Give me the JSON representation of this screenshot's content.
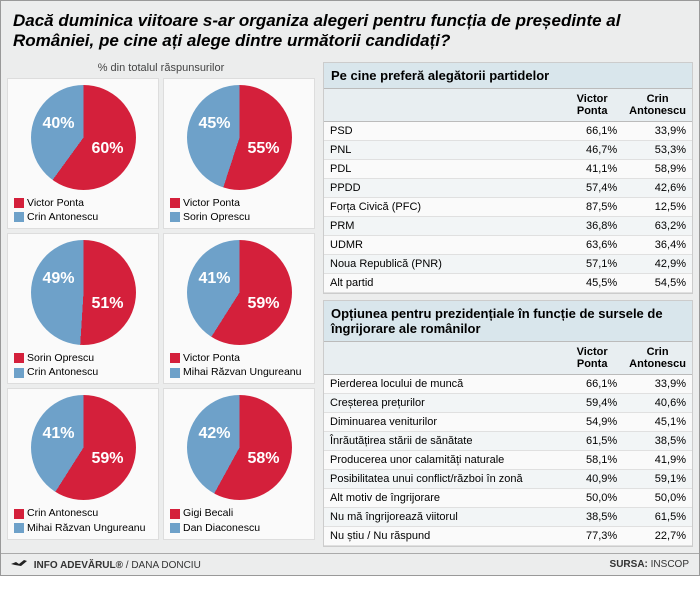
{
  "title": "Dacă duminica viitoare s-ar organiza alegeri pentru funcția de președinte al României, pe cine ați alege dintre următorii candidați?",
  "left_subtitle": "% din totalul răspunsurilor",
  "colors": {
    "red": "#d4203b",
    "blue": "#6ea1c9",
    "bg": "#eceded",
    "panel_header": "#d9e6ec"
  },
  "pies": [
    {
      "red_label": "Victor Ponta",
      "blue_label": "Crin Antonescu",
      "red_pct": "60%",
      "blue_pct": "40%",
      "red_val": 60
    },
    {
      "red_label": "Victor Ponta",
      "blue_label": "Sorin Oprescu",
      "red_pct": "55%",
      "blue_pct": "45%",
      "red_val": 55
    },
    {
      "red_label": "Sorin Oprescu",
      "blue_label": "Crin Antonescu",
      "red_pct": "51%",
      "blue_pct": "49%",
      "red_val": 51
    },
    {
      "red_label": "Victor Ponta",
      "blue_label": "Mihai Răzvan Ungureanu",
      "red_pct": "59%",
      "blue_pct": "41%",
      "red_val": 59
    },
    {
      "red_label": "Crin Antonescu",
      "blue_label": "Mihai Răzvan Ungureanu",
      "red_pct": "59%",
      "blue_pct": "41%",
      "red_val": 59
    },
    {
      "red_label": "Gigi Becali",
      "blue_label": "Dan Diaconescu",
      "red_pct": "58%",
      "blue_pct": "42%",
      "red_val": 58
    }
  ],
  "table1": {
    "title": "Pe cine preferă alegătorii partidelor",
    "col_left_blank": "",
    "col1": "Victor Ponta",
    "col2": "Crin Antonescu",
    "rows": [
      {
        "name": "PSD",
        "v1": "66,1%",
        "v2": "33,9%"
      },
      {
        "name": "PNL",
        "v1": "46,7%",
        "v2": "53,3%"
      },
      {
        "name": "PDL",
        "v1": "41,1%",
        "v2": "58,9%"
      },
      {
        "name": "PPDD",
        "v1": "57,4%",
        "v2": "42,6%"
      },
      {
        "name": "Forța Civică (PFC)",
        "v1": "87,5%",
        "v2": "12,5%"
      },
      {
        "name": "PRM",
        "v1": "36,8%",
        "v2": "63,2%"
      },
      {
        "name": "UDMR",
        "v1": "63,6%",
        "v2": "36,4%"
      },
      {
        "name": "Noua Republică (PNR)",
        "v1": "57,1%",
        "v2": "42,9%"
      },
      {
        "name": "Alt partid",
        "v1": "45,5%",
        "v2": "54,5%"
      }
    ]
  },
  "table2": {
    "title": "Opțiunea pentru prezidențiale în funcție de sursele de îngrijorare ale românilor",
    "col_left_blank": "",
    "col1": "Victor Ponta",
    "col2": "Crin Antonescu",
    "rows": [
      {
        "name": "Pierderea locului de muncă",
        "v1": "66,1%",
        "v2": "33,9%"
      },
      {
        "name": "Creșterea prețurilor",
        "v1": "59,4%",
        "v2": "40,6%"
      },
      {
        "name": "Diminuarea veniturilor",
        "v1": "54,9%",
        "v2": "45,1%"
      },
      {
        "name": "Înrăutățirea stării de sănătate",
        "v1": "61,5%",
        "v2": "38,5%"
      },
      {
        "name": "Producerea unor calamități naturale",
        "v1": "58,1%",
        "v2": "41,9%"
      },
      {
        "name": "Posibilitatea unui conflict/război în zonă",
        "v1": "40,9%",
        "v2": "59,1%"
      },
      {
        "name": "Alt motiv de îngrijorare",
        "v1": "50,0%",
        "v2": "50,0%"
      },
      {
        "name": "Nu mă îngrijorează viitorul",
        "v1": "38,5%",
        "v2": "61,5%"
      },
      {
        "name": "Nu știu / Nu răspund",
        "v1": "77,3%",
        "v2": "22,7%"
      }
    ]
  },
  "footer": {
    "left_brand": "INFO ADEVĂRUL®",
    "left_author": " / DANA DONCIU",
    "right_label": "SURSA:",
    "right_value": " INSCOP"
  }
}
